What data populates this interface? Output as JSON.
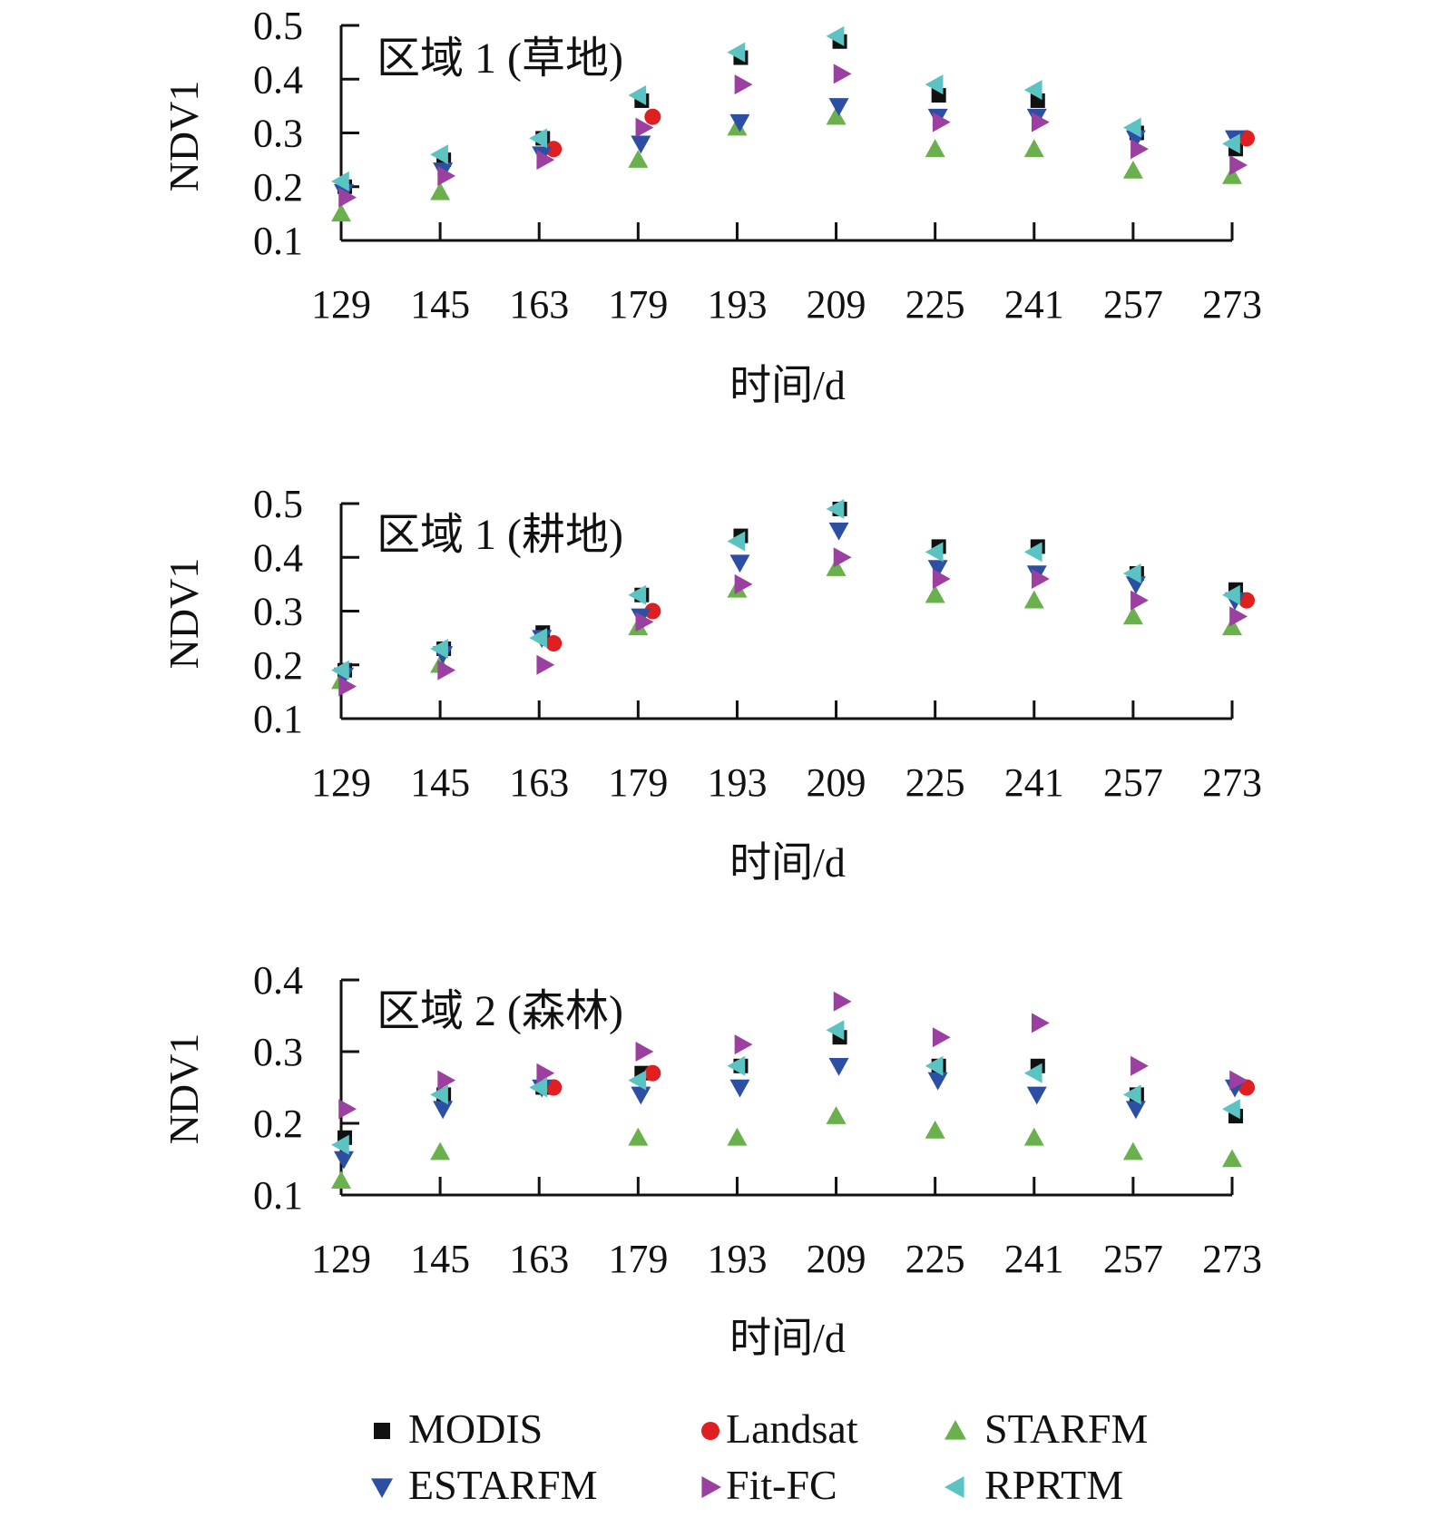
{
  "legend": {
    "items": [
      {
        "name": "MODIS",
        "marker": "square",
        "color": "#111111"
      },
      {
        "name": "Landsat",
        "marker": "circle",
        "color": "#e02020"
      },
      {
        "name": "STARFM",
        "marker": "triangle-up",
        "color": "#6ab04c"
      },
      {
        "name": "ESTARFM",
        "marker": "triangle-down",
        "color": "#2c4fa3"
      },
      {
        "name": "Fit-FC",
        "marker": "triangle-right",
        "color": "#9b3fa0"
      },
      {
        "name": "RPRTM",
        "marker": "triangle-left",
        "color": "#5cc3c3"
      }
    ]
  },
  "chart_data": [
    {
      "type": "scatter",
      "title": "区域 1 (草地)",
      "xlabel": "时间/d",
      "ylabel": "NDV1",
      "categories": [
        "129",
        "145",
        "163",
        "179",
        "193",
        "209",
        "225",
        "241",
        "257",
        "273"
      ],
      "ylim": [
        0.1,
        0.5
      ],
      "yticks": [
        "0.1",
        "0.2",
        "0.3",
        "0.4",
        "0.5"
      ],
      "grid": false,
      "series": [
        {
          "name": "MODIS",
          "values": [
            0.2,
            0.25,
            0.29,
            0.36,
            0.44,
            0.47,
            0.37,
            0.36,
            0.3,
            0.27
          ]
        },
        {
          "name": "Landsat",
          "values": [
            null,
            null,
            0.27,
            0.33,
            null,
            null,
            null,
            null,
            null,
            0.29
          ]
        },
        {
          "name": "STARFM",
          "values": [
            0.15,
            0.19,
            null,
            0.25,
            0.31,
            0.33,
            0.27,
            0.27,
            0.23,
            0.22
          ]
        },
        {
          "name": "ESTARFM",
          "values": [
            0.19,
            0.23,
            0.26,
            0.28,
            0.32,
            0.35,
            0.33,
            0.33,
            0.29,
            0.29
          ]
        },
        {
          "name": "Fit-FC",
          "values": [
            0.18,
            0.22,
            0.25,
            0.31,
            0.39,
            0.41,
            0.32,
            0.32,
            0.27,
            0.24
          ]
        },
        {
          "name": "RPRTM",
          "values": [
            0.21,
            0.26,
            0.29,
            0.37,
            0.45,
            0.48,
            0.39,
            0.38,
            0.31,
            0.28
          ]
        }
      ]
    },
    {
      "type": "scatter",
      "title": "区域 1 (耕地)",
      "xlabel": "时间/d",
      "ylabel": "NDV1",
      "categories": [
        "129",
        "145",
        "163",
        "179",
        "193",
        "209",
        "225",
        "241",
        "257",
        "273"
      ],
      "ylim": [
        0.1,
        0.5
      ],
      "yticks": [
        "0.1",
        "0.2",
        "0.3",
        "0.4",
        "0.5"
      ],
      "grid": false,
      "series": [
        {
          "name": "MODIS",
          "values": [
            0.19,
            0.23,
            0.26,
            0.33,
            0.44,
            0.49,
            0.42,
            0.42,
            0.37,
            0.34
          ]
        },
        {
          "name": "Landsat",
          "values": [
            null,
            null,
            0.24,
            0.3,
            null,
            null,
            null,
            null,
            null,
            0.32
          ]
        },
        {
          "name": "STARFM",
          "values": [
            0.17,
            0.2,
            null,
            0.27,
            0.34,
            0.38,
            0.33,
            0.32,
            0.29,
            0.27
          ]
        },
        {
          "name": "ESTARFM",
          "values": [
            0.18,
            0.22,
            0.25,
            0.29,
            0.39,
            0.45,
            0.38,
            0.37,
            0.35,
            0.32
          ]
        },
        {
          "name": "Fit-FC",
          "values": [
            0.16,
            0.19,
            0.2,
            0.28,
            0.35,
            0.4,
            0.36,
            0.36,
            0.32,
            0.29
          ]
        },
        {
          "name": "RPRTM",
          "values": [
            0.19,
            0.23,
            0.25,
            0.33,
            0.43,
            0.49,
            0.41,
            0.41,
            0.37,
            0.33
          ]
        }
      ]
    },
    {
      "type": "scatter",
      "title": "区域 2 (森林)",
      "xlabel": "时间/d",
      "ylabel": "NDV1",
      "categories": [
        "129",
        "145",
        "163",
        "179",
        "193",
        "209",
        "225",
        "241",
        "257",
        "273"
      ],
      "ylim": [
        0.1,
        0.4
      ],
      "yticks": [
        "0.1",
        "0.2",
        "0.3",
        "0.4"
      ],
      "grid": false,
      "series": [
        {
          "name": "MODIS",
          "values": [
            0.18,
            0.24,
            0.25,
            0.27,
            0.28,
            0.32,
            0.28,
            0.28,
            0.24,
            0.21
          ]
        },
        {
          "name": "Landsat",
          "values": [
            null,
            null,
            0.25,
            0.27,
            null,
            null,
            null,
            null,
            null,
            0.25
          ]
        },
        {
          "name": "STARFM",
          "values": [
            0.12,
            0.16,
            null,
            0.18,
            0.18,
            0.21,
            0.19,
            0.18,
            0.16,
            0.15
          ]
        },
        {
          "name": "ESTARFM",
          "values": [
            0.15,
            0.22,
            0.25,
            0.24,
            0.25,
            0.28,
            0.26,
            0.24,
            0.22,
            0.25
          ]
        },
        {
          "name": "Fit-FC",
          "values": [
            0.22,
            0.26,
            0.27,
            0.3,
            0.31,
            0.37,
            0.32,
            0.34,
            0.28,
            0.26
          ]
        },
        {
          "name": "RPRTM",
          "values": [
            0.17,
            0.24,
            0.25,
            0.26,
            0.28,
            0.33,
            0.28,
            0.27,
            0.24,
            0.22
          ]
        }
      ]
    }
  ]
}
